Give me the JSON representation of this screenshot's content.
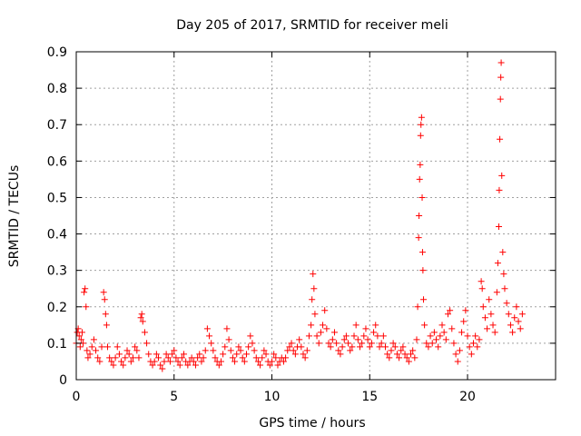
{
  "chart_data": {
    "type": "scatter",
    "title": "Day 205 of 2017, SRMTID for receiver meli",
    "xlabel": "GPS time / hours",
    "ylabel": "SRMTID / TECUs",
    "xlim": [
      0,
      24.5
    ],
    "ylim": [
      0,
      0.9
    ],
    "x_ticks": [
      0,
      5,
      10,
      15,
      20
    ],
    "x_tick_labels": [
      "0",
      "5",
      "10",
      "15",
      "20"
    ],
    "y_ticks": [
      0,
      0.1,
      0.2,
      0.3,
      0.4,
      0.5,
      0.6,
      0.7,
      0.8,
      0.9
    ],
    "y_tick_labels": [
      "0",
      "0.1",
      "0.2",
      "0.3",
      "0.4",
      "0.5",
      "0.6",
      "0.7",
      "0.8",
      "0.9"
    ],
    "grid": true,
    "marker": "+",
    "color": "#ff0000",
    "series": [
      {
        "name": "SRMTID",
        "points": [
          [
            0.0,
            0.1
          ],
          [
            0.05,
            0.13
          ],
          [
            0.1,
            0.14
          ],
          [
            0.15,
            0.12
          ],
          [
            0.2,
            0.09
          ],
          [
            0.25,
            0.11
          ],
          [
            0.3,
            0.13
          ],
          [
            0.35,
            0.1
          ],
          [
            0.4,
            0.24
          ],
          [
            0.45,
            0.25
          ],
          [
            0.5,
            0.2
          ],
          [
            0.55,
            0.08
          ],
          [
            0.6,
            0.06
          ],
          [
            0.7,
            0.07
          ],
          [
            0.8,
            0.09
          ],
          [
            0.9,
            0.11
          ],
          [
            1.0,
            0.08
          ],
          [
            1.1,
            0.06
          ],
          [
            1.2,
            0.05
          ],
          [
            1.3,
            0.09
          ],
          [
            1.4,
            0.24
          ],
          [
            1.45,
            0.22
          ],
          [
            1.5,
            0.18
          ],
          [
            1.55,
            0.15
          ],
          [
            1.6,
            0.09
          ],
          [
            1.7,
            0.06
          ],
          [
            1.8,
            0.05
          ],
          [
            1.9,
            0.04
          ],
          [
            2.0,
            0.06
          ],
          [
            2.1,
            0.09
          ],
          [
            2.2,
            0.07
          ],
          [
            2.3,
            0.05
          ],
          [
            2.4,
            0.04
          ],
          [
            2.5,
            0.06
          ],
          [
            2.6,
            0.08
          ],
          [
            2.7,
            0.07
          ],
          [
            2.8,
            0.05
          ],
          [
            2.9,
            0.06
          ],
          [
            3.0,
            0.09
          ],
          [
            3.1,
            0.08
          ],
          [
            3.2,
            0.06
          ],
          [
            3.3,
            0.17
          ],
          [
            3.35,
            0.18
          ],
          [
            3.4,
            0.16
          ],
          [
            3.5,
            0.13
          ],
          [
            3.6,
            0.1
          ],
          [
            3.7,
            0.07
          ],
          [
            3.8,
            0.05
          ],
          [
            3.9,
            0.04
          ],
          [
            4.0,
            0.05
          ],
          [
            4.1,
            0.07
          ],
          [
            4.2,
            0.06
          ],
          [
            4.3,
            0.04
          ],
          [
            4.4,
            0.03
          ],
          [
            4.5,
            0.05
          ],
          [
            4.6,
            0.07
          ],
          [
            4.7,
            0.06
          ],
          [
            4.8,
            0.05
          ],
          [
            4.9,
            0.07
          ],
          [
            5.0,
            0.08
          ],
          [
            5.1,
            0.06
          ],
          [
            5.2,
            0.05
          ],
          [
            5.3,
            0.04
          ],
          [
            5.4,
            0.06
          ],
          [
            5.5,
            0.07
          ],
          [
            5.6,
            0.05
          ],
          [
            5.7,
            0.04
          ],
          [
            5.8,
            0.05
          ],
          [
            5.9,
            0.06
          ],
          [
            6.0,
            0.05
          ],
          [
            6.1,
            0.04
          ],
          [
            6.2,
            0.06
          ],
          [
            6.3,
            0.07
          ],
          [
            6.4,
            0.05
          ],
          [
            6.5,
            0.06
          ],
          [
            6.6,
            0.08
          ],
          [
            6.7,
            0.14
          ],
          [
            6.8,
            0.12
          ],
          [
            6.9,
            0.1
          ],
          [
            7.0,
            0.08
          ],
          [
            7.1,
            0.06
          ],
          [
            7.2,
            0.05
          ],
          [
            7.3,
            0.04
          ],
          [
            7.4,
            0.05
          ],
          [
            7.5,
            0.07
          ],
          [
            7.6,
            0.09
          ],
          [
            7.7,
            0.14
          ],
          [
            7.8,
            0.11
          ],
          [
            7.9,
            0.08
          ],
          [
            8.0,
            0.06
          ],
          [
            8.1,
            0.05
          ],
          [
            8.2,
            0.07
          ],
          [
            8.3,
            0.09
          ],
          [
            8.4,
            0.08
          ],
          [
            8.5,
            0.06
          ],
          [
            8.6,
            0.05
          ],
          [
            8.7,
            0.07
          ],
          [
            8.8,
            0.09
          ],
          [
            8.9,
            0.12
          ],
          [
            9.0,
            0.1
          ],
          [
            9.1,
            0.08
          ],
          [
            9.2,
            0.06
          ],
          [
            9.3,
            0.05
          ],
          [
            9.4,
            0.04
          ],
          [
            9.5,
            0.06
          ],
          [
            9.6,
            0.08
          ],
          [
            9.7,
            0.07
          ],
          [
            9.8,
            0.05
          ],
          [
            9.9,
            0.04
          ],
          [
            10.0,
            0.05
          ],
          [
            10.1,
            0.07
          ],
          [
            10.2,
            0.06
          ],
          [
            10.3,
            0.04
          ],
          [
            10.4,
            0.05
          ],
          [
            10.5,
            0.06
          ],
          [
            10.6,
            0.05
          ],
          [
            10.7,
            0.06
          ],
          [
            10.8,
            0.08
          ],
          [
            10.9,
            0.09
          ],
          [
            11.0,
            0.1
          ],
          [
            11.1,
            0.08
          ],
          [
            11.2,
            0.07
          ],
          [
            11.3,
            0.09
          ],
          [
            11.4,
            0.11
          ],
          [
            11.5,
            0.09
          ],
          [
            11.6,
            0.07
          ],
          [
            11.7,
            0.06
          ],
          [
            11.8,
            0.08
          ],
          [
            11.9,
            0.12
          ],
          [
            12.0,
            0.15
          ],
          [
            12.05,
            0.22
          ],
          [
            12.1,
            0.29
          ],
          [
            12.15,
            0.25
          ],
          [
            12.2,
            0.18
          ],
          [
            12.3,
            0.12
          ],
          [
            12.4,
            0.1
          ],
          [
            12.5,
            0.13
          ],
          [
            12.6,
            0.15
          ],
          [
            12.7,
            0.19
          ],
          [
            12.8,
            0.14
          ],
          [
            12.9,
            0.1
          ],
          [
            13.0,
            0.09
          ],
          [
            13.1,
            0.11
          ],
          [
            13.2,
            0.13
          ],
          [
            13.3,
            0.1
          ],
          [
            13.4,
            0.08
          ],
          [
            13.5,
            0.07
          ],
          [
            13.6,
            0.09
          ],
          [
            13.7,
            0.11
          ],
          [
            13.8,
            0.12
          ],
          [
            13.9,
            0.1
          ],
          [
            14.0,
            0.08
          ],
          [
            14.1,
            0.09
          ],
          [
            14.2,
            0.12
          ],
          [
            14.3,
            0.15
          ],
          [
            14.4,
            0.11
          ],
          [
            14.5,
            0.09
          ],
          [
            14.6,
            0.1
          ],
          [
            14.7,
            0.12
          ],
          [
            14.8,
            0.14
          ],
          [
            14.9,
            0.11
          ],
          [
            15.0,
            0.09
          ],
          [
            15.1,
            0.1
          ],
          [
            15.2,
            0.13
          ],
          [
            15.3,
            0.15
          ],
          [
            15.4,
            0.12
          ],
          [
            15.5,
            0.09
          ],
          [
            15.6,
            0.1
          ],
          [
            15.7,
            0.12
          ],
          [
            15.8,
            0.09
          ],
          [
            15.9,
            0.07
          ],
          [
            16.0,
            0.06
          ],
          [
            16.1,
            0.08
          ],
          [
            16.2,
            0.1
          ],
          [
            16.3,
            0.09
          ],
          [
            16.4,
            0.07
          ],
          [
            16.5,
            0.06
          ],
          [
            16.6,
            0.08
          ],
          [
            16.7,
            0.09
          ],
          [
            16.8,
            0.07
          ],
          [
            16.9,
            0.06
          ],
          [
            17.0,
            0.05
          ],
          [
            17.1,
            0.07
          ],
          [
            17.2,
            0.08
          ],
          [
            17.3,
            0.06
          ],
          [
            17.4,
            0.11
          ],
          [
            17.45,
            0.2
          ],
          [
            17.5,
            0.39
          ],
          [
            17.52,
            0.45
          ],
          [
            17.55,
            0.55
          ],
          [
            17.58,
            0.59
          ],
          [
            17.6,
            0.67
          ],
          [
            17.62,
            0.7
          ],
          [
            17.65,
            0.72
          ],
          [
            17.68,
            0.5
          ],
          [
            17.7,
            0.35
          ],
          [
            17.72,
            0.3
          ],
          [
            17.75,
            0.22
          ],
          [
            17.8,
            0.15
          ],
          [
            17.9,
            0.1
          ],
          [
            18.0,
            0.09
          ],
          [
            18.1,
            0.12
          ],
          [
            18.2,
            0.1
          ],
          [
            18.3,
            0.13
          ],
          [
            18.4,
            0.11
          ],
          [
            18.5,
            0.09
          ],
          [
            18.6,
            0.12
          ],
          [
            18.7,
            0.15
          ],
          [
            18.8,
            0.13
          ],
          [
            18.9,
            0.11
          ],
          [
            19.0,
            0.18
          ],
          [
            19.1,
            0.19
          ],
          [
            19.2,
            0.14
          ],
          [
            19.3,
            0.1
          ],
          [
            19.4,
            0.07
          ],
          [
            19.5,
            0.05
          ],
          [
            19.6,
            0.08
          ],
          [
            19.7,
            0.13
          ],
          [
            19.8,
            0.16
          ],
          [
            19.9,
            0.19
          ],
          [
            20.0,
            0.12
          ],
          [
            20.1,
            0.09
          ],
          [
            20.2,
            0.07
          ],
          [
            20.3,
            0.1
          ],
          [
            20.4,
            0.12
          ],
          [
            20.5,
            0.09
          ],
          [
            20.6,
            0.11
          ],
          [
            20.7,
            0.27
          ],
          [
            20.75,
            0.25
          ],
          [
            20.8,
            0.2
          ],
          [
            20.9,
            0.17
          ],
          [
            21.0,
            0.14
          ],
          [
            21.1,
            0.22
          ],
          [
            21.2,
            0.18
          ],
          [
            21.3,
            0.15
          ],
          [
            21.4,
            0.13
          ],
          [
            21.5,
            0.24
          ],
          [
            21.55,
            0.32
          ],
          [
            21.6,
            0.42
          ],
          [
            21.62,
            0.52
          ],
          [
            21.65,
            0.66
          ],
          [
            21.68,
            0.77
          ],
          [
            21.7,
            0.83
          ],
          [
            21.72,
            0.87
          ],
          [
            21.75,
            0.56
          ],
          [
            21.8,
            0.35
          ],
          [
            21.85,
            0.29
          ],
          [
            21.9,
            0.25
          ],
          [
            22.0,
            0.21
          ],
          [
            22.1,
            0.18
          ],
          [
            22.2,
            0.15
          ],
          [
            22.3,
            0.13
          ],
          [
            22.4,
            0.17
          ],
          [
            22.5,
            0.2
          ],
          [
            22.6,
            0.16
          ],
          [
            22.7,
            0.14
          ],
          [
            22.8,
            0.18
          ]
        ]
      }
    ]
  }
}
